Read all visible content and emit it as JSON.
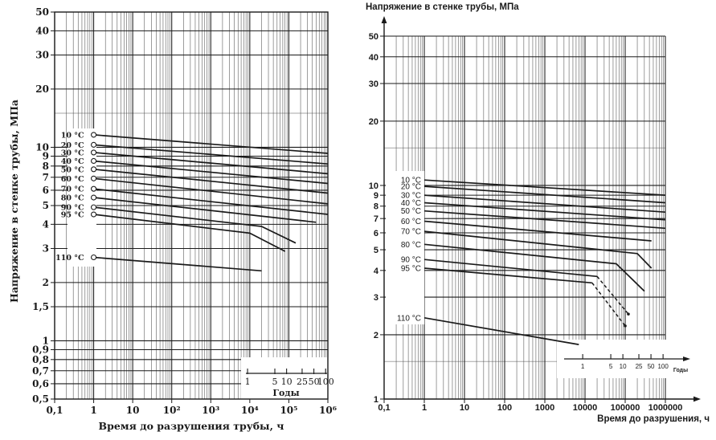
{
  "colors": {
    "ink": "#1a1a1a",
    "paper": "#ffffff"
  },
  "charts_meta": {
    "left": {
      "y_title": "Напряжение в стенке трубы, МПа",
      "x_title": "Время до разрушения трубы, ч"
    },
    "right": {
      "top_title": "Напряжение в стенке трубы, МПа",
      "x_title": "Время до разрушения, ч"
    }
  },
  "chart_data": [
    {
      "id": "left-chart",
      "type": "line",
      "scale": "log-log",
      "x_label": "Время до разрушения трубы, ч",
      "y_label": "Напряжение в стенке трубы, МПа",
      "x_range": [
        0.1,
        1000000
      ],
      "y_range": [
        0.5,
        50
      ],
      "grid": "full log grid, minor lines 2-9 per decade",
      "legend_position": "inline labels at curve start with circle markers",
      "x_ticks": [
        {
          "v": 0.1,
          "label": "0,1"
        },
        {
          "v": 1,
          "label": "1"
        },
        {
          "v": 10,
          "label": "10"
        },
        {
          "v": 100,
          "label": "10²"
        },
        {
          "v": 1000,
          "label": "10³"
        },
        {
          "v": 10000,
          "label": "10⁴"
        },
        {
          "v": 100000,
          "label": "10⁵"
        },
        {
          "v": 1000000,
          "label": "10⁶"
        }
      ],
      "y_ticks": [
        {
          "v": 50,
          "label": "50"
        },
        {
          "v": 40,
          "label": "40"
        },
        {
          "v": 30,
          "label": "30"
        },
        {
          "v": 20,
          "label": "20"
        },
        {
          "v": 10,
          "label": "10"
        },
        {
          "v": 9,
          "label": "9"
        },
        {
          "v": 8,
          "label": "8"
        },
        {
          "v": 7,
          "label": "7"
        },
        {
          "v": 6,
          "label": "6"
        },
        {
          "v": 5,
          "label": "5"
        },
        {
          "v": 4,
          "label": "4"
        },
        {
          "v": 3,
          "label": "3"
        },
        {
          "v": 2,
          "label": "2"
        },
        {
          "v": 1.5,
          "label": "1,5"
        },
        {
          "v": 1,
          "label": "1"
        },
        {
          "v": 0.9,
          "label": "0,9"
        },
        {
          "v": 0.8,
          "label": "0,8"
        },
        {
          "v": 0.7,
          "label": "0,7"
        },
        {
          "v": 0.6,
          "label": "0,6"
        },
        {
          "v": 0.5,
          "label": "0,5"
        }
      ],
      "y_minor_unlabeled": [
        15
      ],
      "years_inset": {
        "label": "Годы",
        "hours_per_year": 8760,
        "ticks": [
          {
            "v": 1,
            "label": "1"
          },
          {
            "v": 5,
            "label": "5"
          },
          {
            "v": 10,
            "label": "10"
          },
          {
            "v": 25,
            "label": "25"
          },
          {
            "v": 50,
            "label": "50"
          },
          {
            "v": 100,
            "label": "100"
          }
        ]
      },
      "series": [
        {
          "name": "10 °C",
          "points": [
            [
              1,
              11.6
            ],
            [
              1000000,
              9.3
            ]
          ]
        },
        {
          "name": "20 °C",
          "points": [
            [
              1,
              10.3
            ],
            [
              1000000,
              8.2
            ]
          ]
        },
        {
          "name": "30 °C",
          "points": [
            [
              1,
              9.4
            ],
            [
              1000000,
              7.3
            ]
          ]
        },
        {
          "name": "40 °C",
          "points": [
            [
              1,
              8.5
            ],
            [
              1000000,
              6.5
            ]
          ]
        },
        {
          "name": "50 °C",
          "points": [
            [
              1,
              7.7
            ],
            [
              1000000,
              5.8
            ]
          ]
        },
        {
          "name": "60 °C",
          "points": [
            [
              1,
              6.9
            ],
            [
              1000000,
              5.1
            ]
          ]
        },
        {
          "name": "70 °C",
          "points": [
            [
              1,
              6.1
            ],
            [
              1000000,
              4.5
            ]
          ]
        },
        {
          "name": "80 °C",
          "points": [
            [
              1,
              5.5
            ],
            [
              500000,
              4.1
            ]
          ]
        },
        {
          "name": "90 °C",
          "points": [
            [
              1,
              4.9
            ],
            [
              20000,
              3.9
            ],
            [
              150000,
              3.2
            ]
          ]
        },
        {
          "name": "95 °C",
          "points": [
            [
              1,
              4.5
            ],
            [
              10000,
              3.6
            ],
            [
              80000,
              2.9
            ]
          ]
        },
        {
          "name": "110 °C",
          "points": [
            [
              1,
              2.7
            ],
            [
              20000,
              2.3
            ]
          ]
        }
      ]
    },
    {
      "id": "right-chart",
      "type": "line",
      "scale": "log-log",
      "x_label": "Время до разрушения, ч",
      "y_label": "Напряжение в стенке трубы, МПа",
      "x_range": [
        0.1,
        1000000
      ],
      "y_range": [
        1,
        50
      ],
      "grid": "full log grid, minor lines 2-9 per decade",
      "legend_position": "inline labels at curve start",
      "x_ticks": [
        {
          "v": 0.1,
          "label": "0,1"
        },
        {
          "v": 1,
          "label": "1"
        },
        {
          "v": 10,
          "label": "10"
        },
        {
          "v": 100,
          "label": "100"
        },
        {
          "v": 1000,
          "label": "1000"
        },
        {
          "v": 10000,
          "label": "10000"
        },
        {
          "v": 100000,
          "label": "100000"
        },
        {
          "v": 1000000,
          "label": "1000000"
        }
      ],
      "y_ticks": [
        {
          "v": 50,
          "label": "50"
        },
        {
          "v": 40,
          "label": "40"
        },
        {
          "v": 30,
          "label": "30"
        },
        {
          "v": 20,
          "label": "20"
        },
        {
          "v": 10,
          "label": "10"
        },
        {
          "v": 9,
          "label": "9"
        },
        {
          "v": 8,
          "label": "8"
        },
        {
          "v": 7,
          "label": "7"
        },
        {
          "v": 6,
          "label": "6"
        },
        {
          "v": 5,
          "label": "5"
        },
        {
          "v": 4,
          "label": "4"
        },
        {
          "v": 3,
          "label": "3"
        },
        {
          "v": 2,
          "label": "2"
        },
        {
          "v": 1,
          "label": "1"
        }
      ],
      "y_minor_unlabeled": [
        15,
        1.5
      ],
      "years_inset": {
        "label": "Годы",
        "hours_per_year": 8760,
        "ticks": [
          {
            "v": 1,
            "label": "1"
          },
          {
            "v": 5,
            "label": "5"
          },
          {
            "v": 10,
            "label": "10"
          },
          {
            "v": 25,
            "label": "25"
          },
          {
            "v": 50,
            "label": "50"
          },
          {
            "v": 100,
            "label": "100"
          }
        ]
      },
      "series": [
        {
          "name": "10 °C",
          "points": [
            [
              1,
              10.6
            ],
            [
              1000000,
              9.0
            ]
          ]
        },
        {
          "name": "20 °C",
          "points": [
            [
              1,
              9.9
            ],
            [
              1000000,
              8.3
            ]
          ]
        },
        {
          "name": "30 °C",
          "points": [
            [
              1,
              9.0
            ],
            [
              1000000,
              7.5
            ]
          ]
        },
        {
          "name": "40 °C",
          "points": [
            [
              1,
              8.3
            ],
            [
              1000000,
              6.9
            ]
          ]
        },
        {
          "name": "50 °C",
          "points": [
            [
              1,
              7.6
            ],
            [
              1000000,
              6.3
            ]
          ]
        },
        {
          "name": "60 °C",
          "points": [
            [
              1,
              6.8
            ],
            [
              450000,
              5.5
            ]
          ]
        },
        {
          "name": "70 °C",
          "points": [
            [
              1,
              6.1
            ],
            [
              200000,
              4.8
            ],
            [
              450000,
              4.1
            ]
          ]
        },
        {
          "name": "80 °C",
          "points": [
            [
              1,
              5.3
            ],
            [
              60000,
              4.3
            ],
            [
              300000,
              3.2
            ]
          ]
        },
        {
          "name": "90 °C",
          "points": [
            [
              1,
              4.5
            ],
            [
              20000,
              3.75
            ],
            [
              120000,
              2.5
            ]
          ],
          "dash_last": true,
          "end_dot": true
        },
        {
          "name": "95 °C",
          "points": [
            [
              1,
              4.1
            ],
            [
              15000,
              3.5
            ],
            [
              100000,
              2.2
            ]
          ],
          "dash_last": true,
          "end_dot": true
        },
        {
          "name": "110 °C",
          "points": [
            [
              1,
              2.4
            ],
            [
              7000,
              1.8
            ]
          ]
        }
      ]
    }
  ]
}
